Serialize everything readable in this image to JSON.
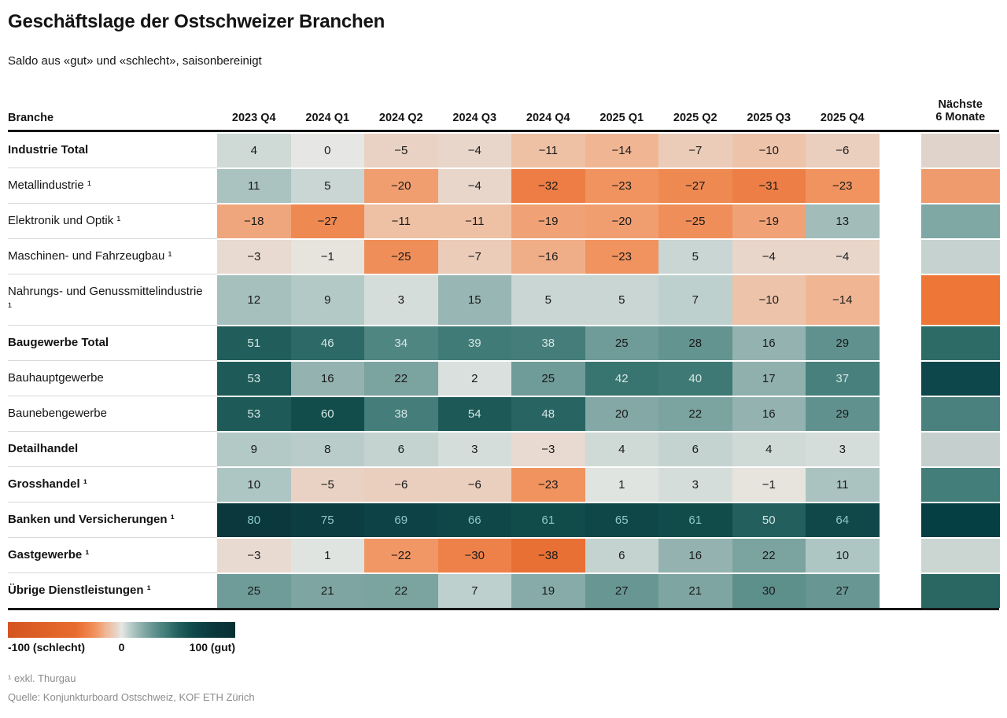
{
  "title": "Geschäftslage der Ostschweizer Branchen",
  "subtitle": "Saldo aus «gut» und «schlecht», saisonbereinigt",
  "header": {
    "branch": "Branche",
    "next6_line1": "Nächste",
    "next6_line2": "6 Monate"
  },
  "legend": {
    "min_label": "-100 (schlecht)",
    "mid_label": "0",
    "max_label": "100 (gut)"
  },
  "footnote": "¹ exkl. Thurgau",
  "source": "Quelle: Konjunkturboard Ostschweiz, KOF ETH Zürich",
  "chart_data": {
    "type": "heatmap",
    "title": "Geschäftslage der Ostschweizer Branchen",
    "subtitle": "Saldo aus «gut» und «schlecht», saisonbereinigt",
    "columns": [
      "2023 Q4",
      "2024 Q1",
      "2024 Q2",
      "2024 Q3",
      "2024 Q4",
      "2025 Q1",
      "2025 Q2",
      "2025 Q3",
      "2025 Q4",
      "Nächste 6 Monate"
    ],
    "value_range": [
      -100,
      100
    ],
    "legend_note": "-100 = schlecht, 100 = gut",
    "rows": [
      {
        "label": "Industrie Total",
        "bold": true,
        "values": [
          4,
          0,
          -5,
          -4,
          -11,
          -14,
          -7,
          -10,
          -6
        ],
        "next6_color": "#e0d3cb"
      },
      {
        "label": "Metallindustrie ¹",
        "bold": false,
        "values": [
          11,
          5,
          -20,
          -4,
          -32,
          -23,
          -27,
          -31,
          -23
        ],
        "next6_color": "#ef9b6e"
      },
      {
        "label": "Elektronik und Optik ¹",
        "bold": false,
        "values": [
          -18,
          -27,
          -11,
          -11,
          -19,
          -20,
          -25,
          -19,
          13
        ],
        "next6_color": "#7fa7a4"
      },
      {
        "label": "Maschinen- und Fahrzeugbau ¹",
        "bold": false,
        "values": [
          -3,
          -1,
          -25,
          -7,
          -16,
          -23,
          5,
          -4,
          -4
        ],
        "next6_color": "#c6d2d0"
      },
      {
        "label": "Nahrungs- und Genussmittelindustrie ¹",
        "bold": false,
        "values": [
          12,
          9,
          3,
          15,
          5,
          5,
          7,
          -10,
          -14
        ],
        "next6_color": "#ee7636"
      },
      {
        "label": "Baugewerbe Total",
        "bold": true,
        "values": [
          51,
          46,
          34,
          39,
          38,
          25,
          28,
          16,
          29
        ],
        "next6_color": "#2d6b66"
      },
      {
        "label": "Bauhauptgewerbe",
        "bold": false,
        "values": [
          53,
          16,
          22,
          2,
          25,
          42,
          40,
          17,
          37
        ],
        "next6_color": "#0d474b"
      },
      {
        "label": "Baunebengewerbe",
        "bold": false,
        "values": [
          53,
          60,
          38,
          54,
          48,
          20,
          22,
          16,
          29
        ],
        "next6_color": "#4a807d"
      },
      {
        "label": "Detailhandel",
        "bold": true,
        "values": [
          9,
          8,
          6,
          3,
          -3,
          4,
          6,
          4,
          3
        ],
        "next6_color": "#c5d0ce"
      },
      {
        "label": "Grosshandel ¹",
        "bold": true,
        "values": [
          10,
          -5,
          -6,
          -6,
          -23,
          1,
          3,
          -1,
          11
        ],
        "next6_color": "#437e7b"
      },
      {
        "label": "Banken und Versicherungen ¹",
        "bold": true,
        "values": [
          80,
          75,
          69,
          66,
          61,
          65,
          61,
          50,
          64
        ],
        "next6_color": "#053e43"
      },
      {
        "label": "Gastgewerbe ¹",
        "bold": true,
        "values": [
          -3,
          1,
          -22,
          -30,
          -38,
          6,
          16,
          22,
          10
        ],
        "next6_color": "#cbd6d3"
      },
      {
        "label": "Übrige Dienstleistungen ¹",
        "bold": true,
        "values": [
          25,
          21,
          22,
          7,
          19,
          27,
          21,
          30,
          27
        ],
        "next6_color": "#2a6763"
      }
    ],
    "color_stops": [
      [
        -100,
        "#d4541e"
      ],
      [
        -40,
        "#e86c2f"
      ],
      [
        -30,
        "#ee8149"
      ],
      [
        -23,
        "#f0935f"
      ],
      [
        -20,
        "#f09e70"
      ],
      [
        -14,
        "#f0b694"
      ],
      [
        -10,
        "#edc3a9"
      ],
      [
        -5,
        "#e9d2c3"
      ],
      [
        0,
        "#e6e7e4"
      ],
      [
        5,
        "#c9d6d3"
      ],
      [
        10,
        "#aec6c3"
      ],
      [
        15,
        "#98b6b3"
      ],
      [
        20,
        "#83a8a5"
      ],
      [
        25,
        "#6f9b98"
      ],
      [
        30,
        "#5d8f8b"
      ],
      [
        35,
        "#4d8480"
      ],
      [
        40,
        "#3e7975"
      ],
      [
        45,
        "#2f6c69"
      ],
      [
        50,
        "#235f5d"
      ],
      [
        55,
        "#1a5755"
      ],
      [
        60,
        "#124d4c"
      ],
      [
        65,
        "#0f4749"
      ],
      [
        70,
        "#0d4145"
      ],
      [
        80,
        "#0a383d"
      ],
      [
        100,
        "#072f34"
      ]
    ]
  }
}
